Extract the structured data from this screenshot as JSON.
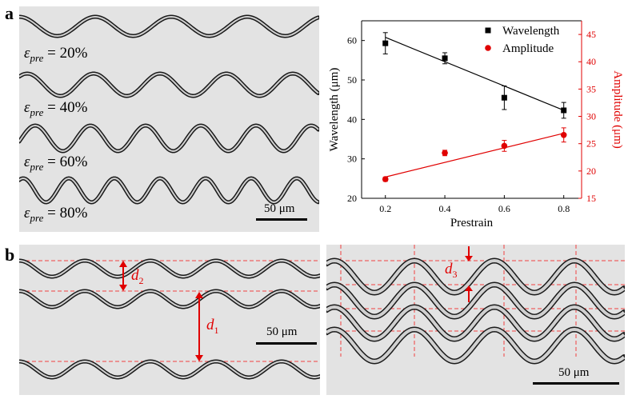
{
  "panel_a": {
    "letter": "a",
    "micrographs": [
      {
        "symbol": "ε",
        "subscript": "pre",
        "value": "= 20%"
      },
      {
        "symbol": "ε",
        "subscript": "pre",
        "value": "= 40%"
      },
      {
        "symbol": "ε",
        "subscript": "pre",
        "value": "= 60%"
      },
      {
        "symbol": "ε",
        "subscript": "pre",
        "value": "= 80%"
      }
    ],
    "scale_label": "50 μm"
  },
  "panel_b": {
    "letter": "b",
    "left_scale_label": "50 μm",
    "right_scale_label": "50 μm",
    "d1": {
      "letter": "d",
      "sub": "1"
    },
    "d2": {
      "letter": "d",
      "sub": "2"
    },
    "d3": {
      "letter": "d",
      "sub": "3"
    }
  },
  "chart_data": {
    "type": "scatter",
    "x": [
      0.2,
      0.4,
      0.6,
      0.8
    ],
    "xlabel": "Prestrain",
    "x_ticks": [
      "0.2",
      "0.4",
      "0.6",
      "0.8"
    ],
    "xlim": [
      0.12,
      0.86
    ],
    "ylabel": "Wavelength (μm)",
    "ylim": [
      20,
      65
    ],
    "y_ticks": [
      "20",
      "30",
      "40",
      "50",
      "60"
    ],
    "y2label": "Amplitude (μm)",
    "y2lim": [
      15,
      47.5
    ],
    "y2_ticks": [
      "15",
      "20",
      "25",
      "30",
      "35",
      "40",
      "45"
    ],
    "legend_position": "top-right",
    "series": [
      {
        "name": "Wavelength",
        "axis": "left",
        "marker": "square",
        "color": "#000000",
        "values": [
          59.3,
          55.5,
          45.5,
          42.3
        ],
        "errors": [
          2.7,
          1.4,
          3.0,
          2.0
        ],
        "fit": [
          60.8,
          54.6,
          48.5,
          42.3
        ]
      },
      {
        "name": "Amplitude",
        "axis": "right",
        "marker": "circle",
        "color": "#e00000",
        "values": [
          18.5,
          23.3,
          24.6,
          26.6
        ],
        "errors": [
          0.4,
          0.5,
          1.0,
          1.3
        ],
        "fit": [
          18.9,
          21.6,
          24.2,
          26.9
        ]
      }
    ]
  }
}
